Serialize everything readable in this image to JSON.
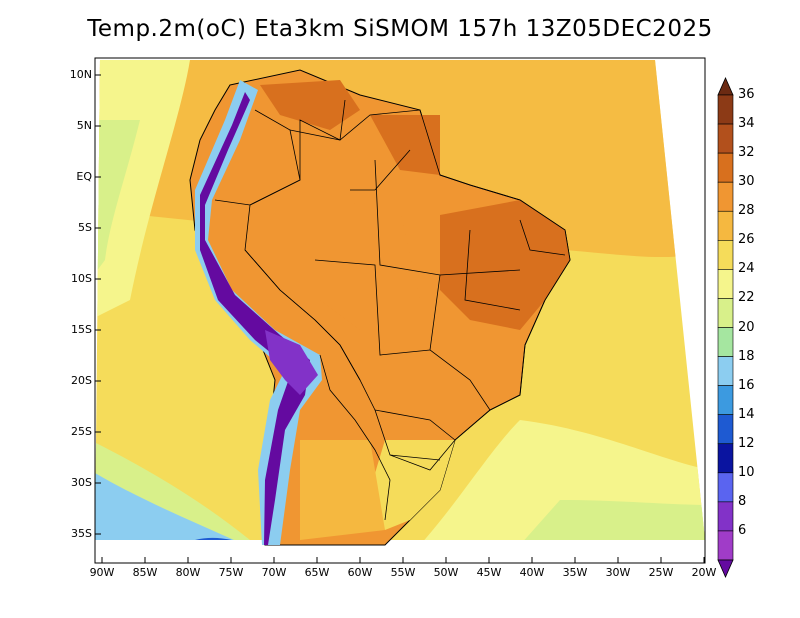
{
  "title": "Temp.2m(oC) Eta3km SiSMOM 157h 13Z05DEC2025",
  "lat_labels": [
    "10N",
    "5N",
    "EQ",
    "5S",
    "10S",
    "15S",
    "20S",
    "25S",
    "30S",
    "35S"
  ],
  "lon_labels": [
    "90W",
    "85W",
    "80W",
    "75W",
    "70W",
    "65W",
    "60W",
    "55W",
    "50W",
    "45W",
    "40W",
    "35W",
    "30W",
    "25W",
    "20W"
  ],
  "colorbar": {
    "labels": [
      "36",
      "34",
      "32",
      "30",
      "28",
      "26",
      "24",
      "22",
      "20",
      "18",
      "16",
      "14",
      "12",
      "10",
      "8",
      "6"
    ],
    "colors": [
      "#6b2a12",
      "#8c3a16",
      "#b2501c",
      "#d8701e",
      "#f09632",
      "#f5b840",
      "#f5dc5a",
      "#f5f58c",
      "#d8f08a",
      "#a5e6a0",
      "#8ccdf0",
      "#3c9ae0",
      "#1e5ad2",
      "#0a14a0",
      "#5a64f0",
      "#8232c8",
      "#a03cc8",
      "#640aa0"
    ]
  },
  "colors": {
    "ocean_tropical": "#f5b840",
    "ocean_mid": "#f5dc5a",
    "ocean_south": "#f5f58c",
    "land_hot": "#f09632",
    "land_very_hot": "#d8701e",
    "andes": "#5a2aa0",
    "boundary": "#000000"
  }
}
